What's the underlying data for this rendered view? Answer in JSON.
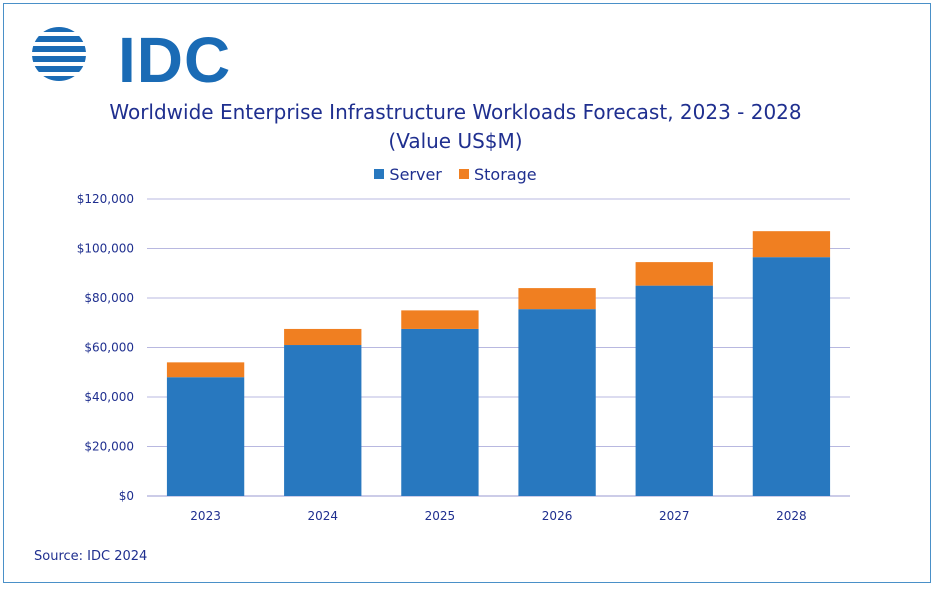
{
  "logo": {
    "text": "IDC",
    "icon": "globe-stripes-icon"
  },
  "title_line1": "Worldwide Enterprise Infrastructure Workloads Forecast, 2023 - 2028",
  "title_line2": "(Value US$M)",
  "source": "Source: IDC 2024",
  "colors": {
    "server": "#2878bf",
    "storage": "#f07f21",
    "grid": "#b8b8e0",
    "text": "#1f2f8f",
    "brand": "#1a6bb5"
  },
  "chart_data": {
    "type": "bar",
    "stacked": true,
    "categories": [
      "2023",
      "2024",
      "2025",
      "2026",
      "2027",
      "2028"
    ],
    "series": [
      {
        "name": "Server",
        "values": [
          48000,
          61000,
          67500,
          75500,
          85000,
          96500
        ]
      },
      {
        "name": "Storage",
        "values": [
          6000,
          6500,
          7500,
          8500,
          9500,
          10500
        ]
      }
    ],
    "ylim": [
      0,
      120000
    ],
    "yticks": [
      "$0",
      "$20,000",
      "$40,000",
      "$60,000",
      "$80,000",
      "$100,000",
      "$120,000"
    ],
    "ytick_values": [
      0,
      20000,
      40000,
      60000,
      80000,
      100000,
      120000
    ],
    "legend": "top",
    "grid": true
  }
}
